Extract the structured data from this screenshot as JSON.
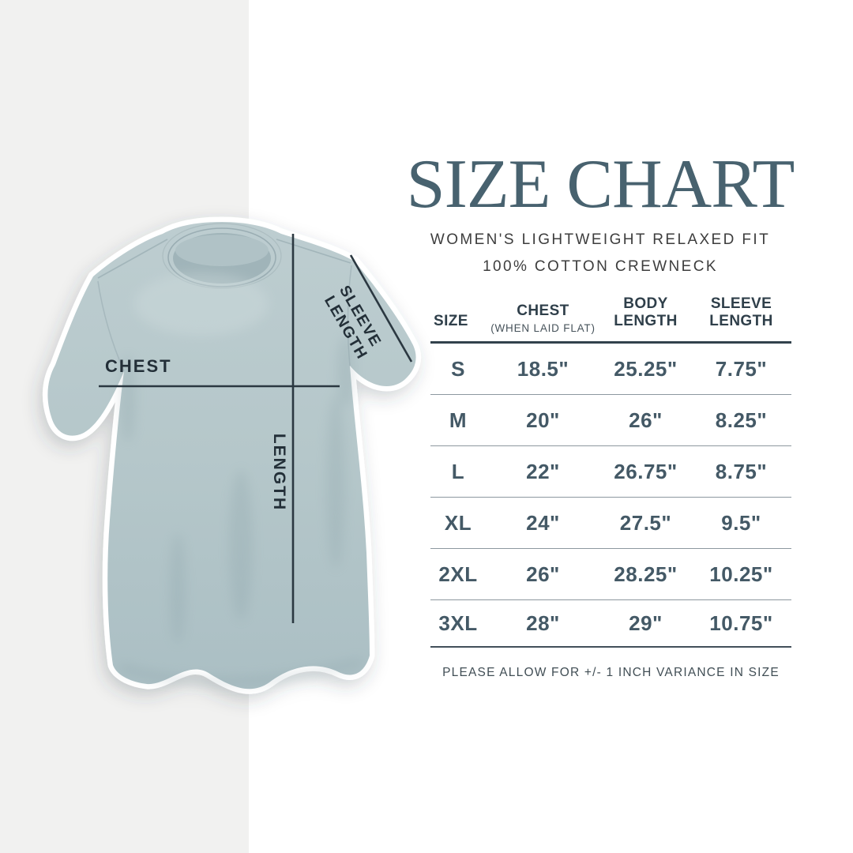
{
  "colors": {
    "band": "#f1f1f0",
    "page": "#ffffff",
    "title": "#48626f",
    "shirt": "#b5c7ca",
    "annotation_line": "#2b3841",
    "table_text": "#445966",
    "rule_dark": "#32424c"
  },
  "header": {
    "title": "SIZE CHART",
    "subtitle1": "WOMEN'S LIGHTWEIGHT RELAXED FIT",
    "subtitle2": "100% COTTON CREWNECK"
  },
  "diagram": {
    "labels": {
      "chest": "CHEST",
      "length": "LENGTH",
      "sleeve_line1": "SLEEVE",
      "sleeve_line2": "LENGTH"
    }
  },
  "table": {
    "columns": [
      {
        "label": "SIZE",
        "sublabel": ""
      },
      {
        "label": "CHEST",
        "sublabel": "(WHEN LAID FLAT)"
      },
      {
        "label": "BODY LENGTH",
        "sublabel": ""
      },
      {
        "label": "SLEEVE LENGTH",
        "sublabel": ""
      }
    ],
    "rows": [
      [
        "S",
        "18.5\"",
        "25.25\"",
        "7.75\""
      ],
      [
        "M",
        "20\"",
        "26\"",
        "8.25\""
      ],
      [
        "L",
        "22\"",
        "26.75\"",
        "8.75\""
      ],
      [
        "XL",
        "24\"",
        "27.5\"",
        "9.5\""
      ],
      [
        "2XL",
        "26\"",
        "28.25\"",
        "10.25\""
      ],
      [
        "3XL",
        "28\"",
        "29\"",
        "10.75\""
      ]
    ]
  },
  "footer": {
    "note": "PLEASE ALLOW FOR +/- 1 INCH VARIANCE IN SIZE"
  },
  "chart_data": {
    "type": "table",
    "title": "SIZE CHART",
    "subtitle": "WOMEN'S LIGHTWEIGHT RELAXED FIT — 100% COTTON CREWNECK",
    "columns": [
      "SIZE",
      "CHEST (WHEN LAID FLAT)",
      "BODY LENGTH",
      "SLEEVE LENGTH"
    ],
    "rows": [
      [
        "S",
        "18.5\"",
        "25.25\"",
        "7.75\""
      ],
      [
        "M",
        "20\"",
        "26\"",
        "8.25\""
      ],
      [
        "L",
        "22\"",
        "26.75\"",
        "8.75\""
      ],
      [
        "XL",
        "24\"",
        "27.5\"",
        "9.5\""
      ],
      [
        "2XL",
        "26\"",
        "28.25\"",
        "10.25\""
      ],
      [
        "3XL",
        "28\"",
        "29\"",
        "10.75\""
      ]
    ],
    "units": "inches",
    "note": "PLEASE ALLOW FOR +/- 1 INCH VARIANCE IN SIZE"
  }
}
